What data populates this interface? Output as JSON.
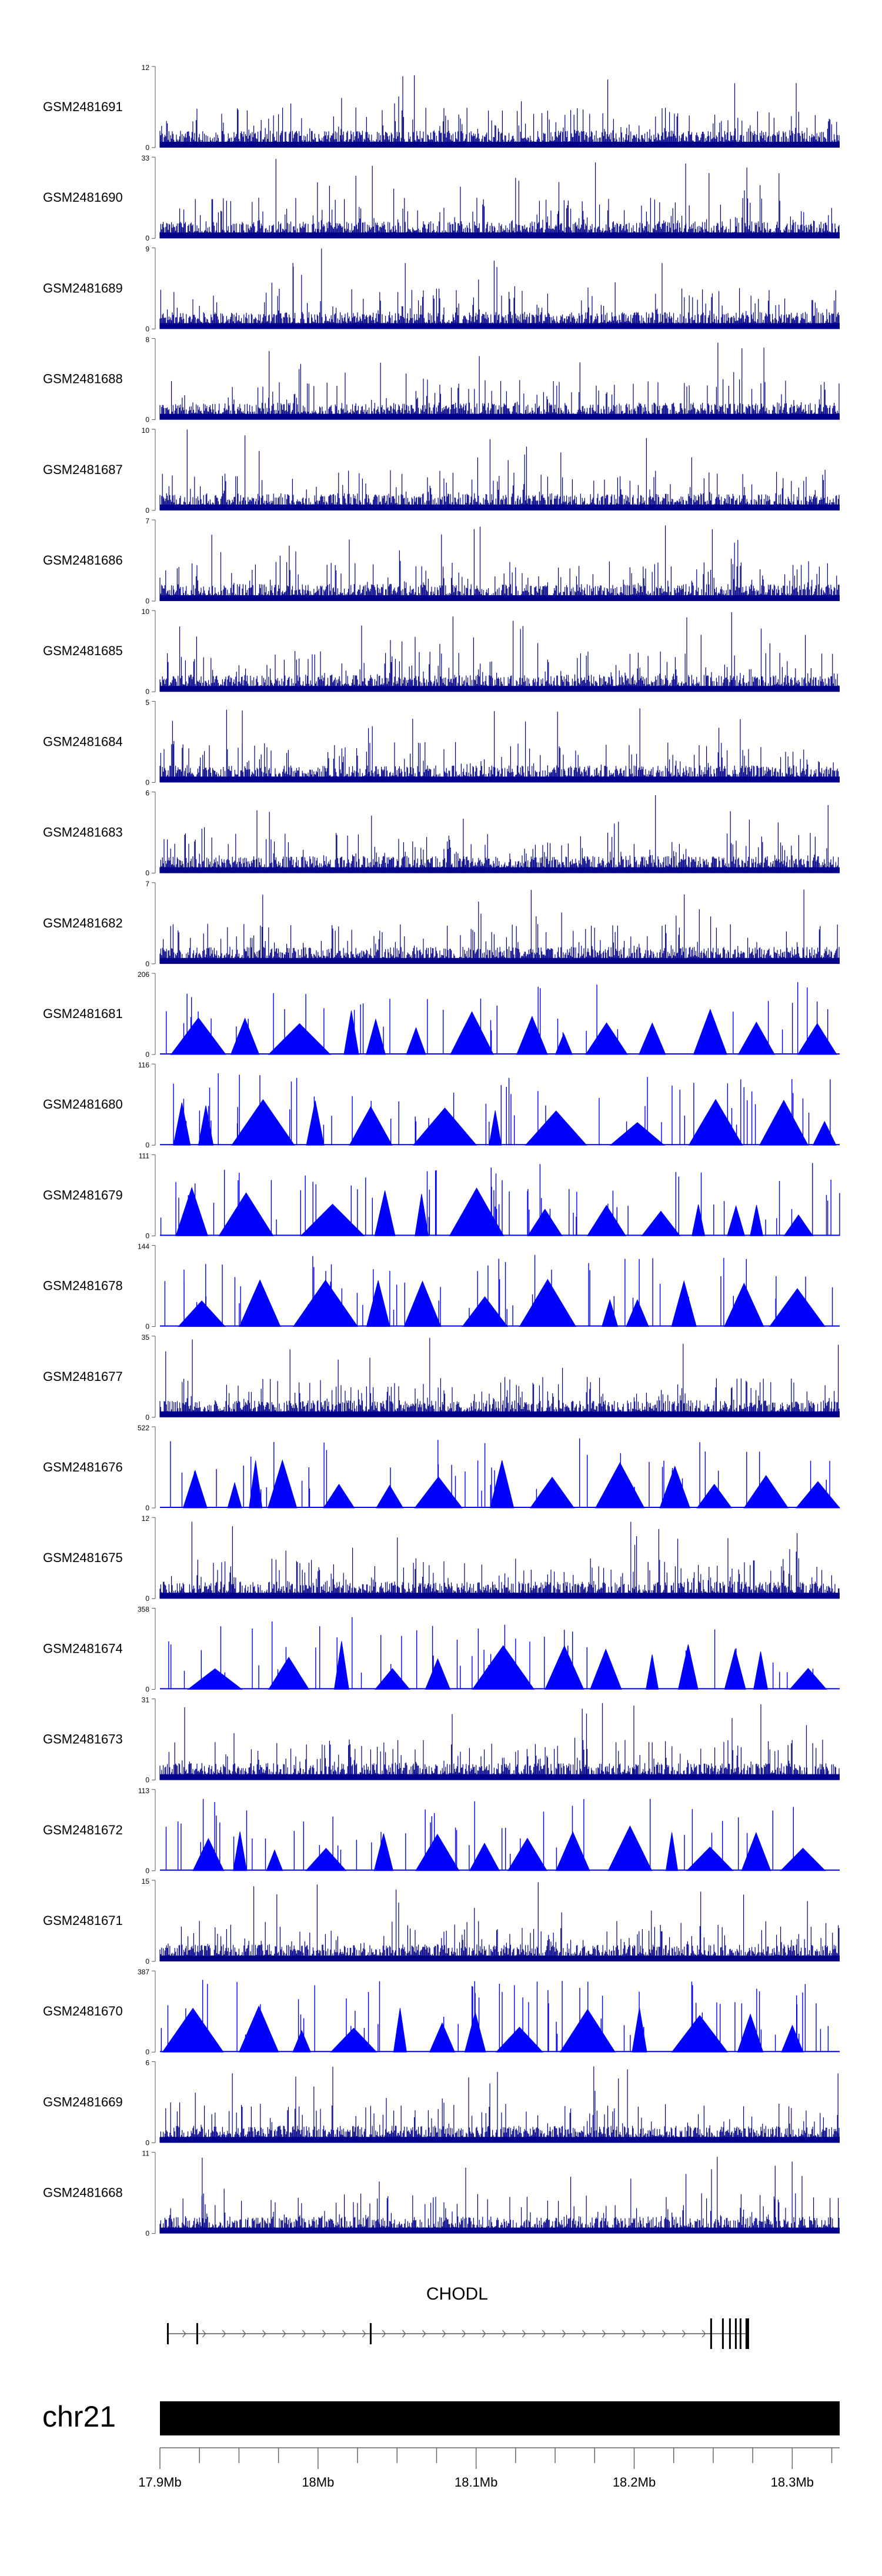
{
  "chart_data": {
    "type": "area",
    "title": "",
    "xlabel": "",
    "ylabel": "",
    "xlim_mb": [
      17.9,
      18.33
    ],
    "colors": {
      "track": "#00008B",
      "peaks": "#0000FF",
      "ideogram": "#000000"
    },
    "tracks": [
      {
        "name": "GSM2481691",
        "ymax": "12",
        "ymin": "0",
        "style": "coverage",
        "peak": 10.5
      },
      {
        "name": "GSM2481690",
        "ymax": "33",
        "ymin": "0",
        "style": "coverage",
        "peak": 31
      },
      {
        "name": "GSM2481689",
        "ymax": "9",
        "ymin": "0",
        "style": "coverage",
        "peak": 8.4
      },
      {
        "name": "GSM2481688",
        "ymax": "8",
        "ymin": "0",
        "style": "coverage",
        "peak": 7.6
      },
      {
        "name": "GSM2481687",
        "ymax": "10",
        "ymin": "0",
        "style": "coverage",
        "peak": 9.5
      },
      {
        "name": "GSM2481686",
        "ymax": "7",
        "ymin": "0",
        "style": "coverage",
        "peak": 6.8
      },
      {
        "name": "GSM2481685",
        "ymax": "10",
        "ymin": "0",
        "style": "coverage",
        "peak": 9.0
      },
      {
        "name": "GSM2481684",
        "ymax": "5",
        "ymin": "0",
        "style": "coverage",
        "peak": 4.7
      },
      {
        "name": "GSM2481683",
        "ymax": "6",
        "ymin": "0",
        "style": "coverage",
        "peak": 5.6
      },
      {
        "name": "GSM2481682",
        "ymax": "7",
        "ymin": "0",
        "style": "coverage",
        "peak": 6.5
      },
      {
        "name": "GSM2481681",
        "ymax": "206",
        "ymin": "0",
        "style": "peaks",
        "peak": 200
      },
      {
        "name": "GSM2481680",
        "ymax": "116",
        "ymin": "0",
        "style": "peaks",
        "peak": 112
      },
      {
        "name": "GSM2481679",
        "ymax": "111",
        "ymin": "0",
        "style": "peaks",
        "peak": 105
      },
      {
        "name": "GSM2481678",
        "ymax": "144",
        "ymin": "0",
        "style": "peaks",
        "peak": 140
      },
      {
        "name": "GSM2481677",
        "ymax": "35",
        "ymin": "0",
        "style": "coverage",
        "peak": 33
      },
      {
        "name": "GSM2481676",
        "ymax": "522",
        "ymin": "0",
        "style": "peaks",
        "peak": 500
      },
      {
        "name": "GSM2481675",
        "ymax": "12",
        "ymin": "0",
        "style": "coverage",
        "peak": 11.5
      },
      {
        "name": "GSM2481674",
        "ymax": "358",
        "ymin": "0",
        "style": "peaks",
        "peak": 340
      },
      {
        "name": "GSM2481673",
        "ymax": "31",
        "ymin": "0",
        "style": "coverage",
        "peak": 30
      },
      {
        "name": "GSM2481672",
        "ymax": "113",
        "ymin": "0",
        "style": "peaks",
        "peak": 110
      },
      {
        "name": "GSM2481671",
        "ymax": "15",
        "ymin": "0",
        "style": "coverage",
        "peak": 14
      },
      {
        "name": "GSM2481670",
        "ymax": "387",
        "ymin": "0",
        "style": "peaks",
        "peak": 370
      },
      {
        "name": "GSM2481669",
        "ymax": "6",
        "ymin": "0",
        "style": "coverage",
        "peak": 5.6
      },
      {
        "name": "GSM2481668",
        "ymax": "11",
        "ymin": "0",
        "style": "coverage",
        "peak": 10.5
      }
    ],
    "gene": {
      "name": "CHODL",
      "start_mb": 17.905,
      "end_mb": 18.271,
      "strand": "+"
    },
    "ideogram": {
      "chromosome": "chr21",
      "start_mb": 17.9,
      "end_mb": 18.33
    },
    "axis_ticks": [
      {
        "label": "17.9Mb",
        "mb": 17.9
      },
      {
        "label": "18Mb",
        "mb": 18.0
      },
      {
        "label": "18.1Mb",
        "mb": 18.1
      },
      {
        "label": "18.2Mb",
        "mb": 18.2
      },
      {
        "label": "18.3Mb",
        "mb": 18.3
      }
    ]
  }
}
